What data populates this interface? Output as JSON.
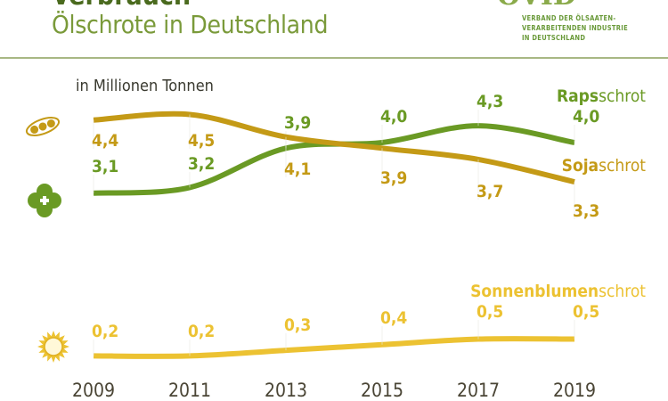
{
  "header": {
    "title": "Verbrauch",
    "subtitle": "Ölschrote in Deutschland",
    "logo_mark": "OVID",
    "logo_lines": [
      "VERBAND DER ÖLSAATEN-",
      "VERARBEITENDEN INDUSTRIE",
      "IN DEUTSCHLAND"
    ]
  },
  "chart_data": {
    "type": "line",
    "title": "Verbrauch Ölschrote in Deutschland",
    "ylabel": "in Millionen Tonnen",
    "x": [
      "2009",
      "2011",
      "2013",
      "2015",
      "2017",
      "2019"
    ],
    "grid": false,
    "series": [
      {
        "name": "Rapsschrot",
        "name_bold": "Raps",
        "name_rest": "schrot",
        "color": "#6a9a24",
        "icon": "rapeseed-flower-icon",
        "values": [
          3.1,
          3.2,
          3.9,
          4.0,
          4.3,
          4.0
        ],
        "labels": [
          "3,1",
          "3,2",
          "3,9",
          "4,0",
          "4,3",
          "4,0"
        ]
      },
      {
        "name": "Sojaschrot",
        "name_bold": "Soja",
        "name_rest": "schrot",
        "color": "#c49a16",
        "icon": "soybean-pod-icon",
        "values": [
          4.4,
          4.5,
          4.1,
          3.9,
          3.7,
          3.3
        ],
        "labels": [
          "4,4",
          "4,5",
          "4,1",
          "3,9",
          "3,7",
          "3,3"
        ]
      },
      {
        "name": "Sonnenblumenschrot",
        "name_bold": "Sonnenblumen",
        "name_rest": "schrot",
        "color": "#ecc232",
        "icon": "sunflower-icon",
        "values": [
          0.2,
          0.2,
          0.3,
          0.4,
          0.5,
          0.5
        ],
        "labels": [
          "0,2",
          "0,2",
          "0,3",
          "0,4",
          "0,5",
          "0,5"
        ]
      }
    ]
  }
}
